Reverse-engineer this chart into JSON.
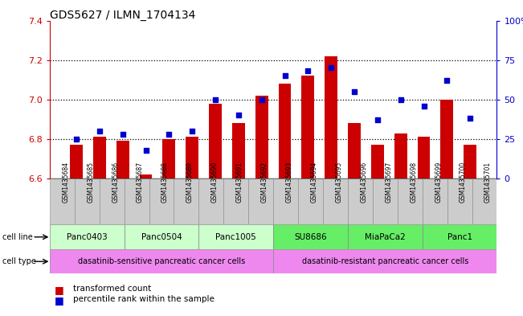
{
  "title": "GDS5627 / ILMN_1704134",
  "samples": [
    "GSM1435684",
    "GSM1435685",
    "GSM1435686",
    "GSM1435687",
    "GSM1435688",
    "GSM1435689",
    "GSM1435690",
    "GSM1435691",
    "GSM1435692",
    "GSM1435693",
    "GSM1435694",
    "GSM1435695",
    "GSM1435696",
    "GSM1435697",
    "GSM1435698",
    "GSM1435699",
    "GSM1435700",
    "GSM1435701"
  ],
  "bar_values": [
    6.77,
    6.81,
    6.79,
    6.62,
    6.8,
    6.81,
    6.98,
    6.88,
    7.02,
    7.08,
    7.12,
    7.22,
    6.88,
    6.77,
    6.83,
    6.81,
    7.0,
    6.77
  ],
  "dot_values": [
    25,
    30,
    28,
    18,
    28,
    30,
    50,
    40,
    50,
    65,
    68,
    70,
    55,
    37,
    50,
    46,
    62,
    38
  ],
  "ylim_left": [
    6.6,
    7.4
  ],
  "ylim_right": [
    0,
    100
  ],
  "yticks_left": [
    6.6,
    6.8,
    7.0,
    7.2,
    7.4
  ],
  "yticks_right": [
    0,
    25,
    50,
    75,
    100
  ],
  "bar_color": "#cc0000",
  "dot_color": "#0000cc",
  "bar_bottom": 6.6,
  "cell_lines": [
    {
      "name": "Panc0403",
      "start": 0,
      "end": 2,
      "color": "#ccffcc"
    },
    {
      "name": "Panc0504",
      "start": 3,
      "end": 5,
      "color": "#ccffcc"
    },
    {
      "name": "Panc1005",
      "start": 6,
      "end": 8,
      "color": "#ccffcc"
    },
    {
      "name": "SU8686",
      "start": 9,
      "end": 11,
      "color": "#66ee66"
    },
    {
      "name": "MiaPaCa2",
      "start": 12,
      "end": 14,
      "color": "#66ee66"
    },
    {
      "name": "Panc1",
      "start": 15,
      "end": 17,
      "color": "#66ee66"
    }
  ],
  "cell_types": [
    {
      "name": "dasatinib-sensitive pancreatic cancer cells",
      "start": 0,
      "end": 8
    },
    {
      "name": "dasatinib-resistant pancreatic cancer cells",
      "start": 9,
      "end": 17
    }
  ],
  "cell_type_color": "#ee88ee",
  "legend_bar_label": "transformed count",
  "legend_dot_label": "percentile rank within the sample",
  "axis_left_color": "#cc0000",
  "axis_right_color": "#0000cc",
  "sample_bg_color": "#cccccc",
  "grid_yticks": [
    6.8,
    7.0,
    7.2
  ]
}
